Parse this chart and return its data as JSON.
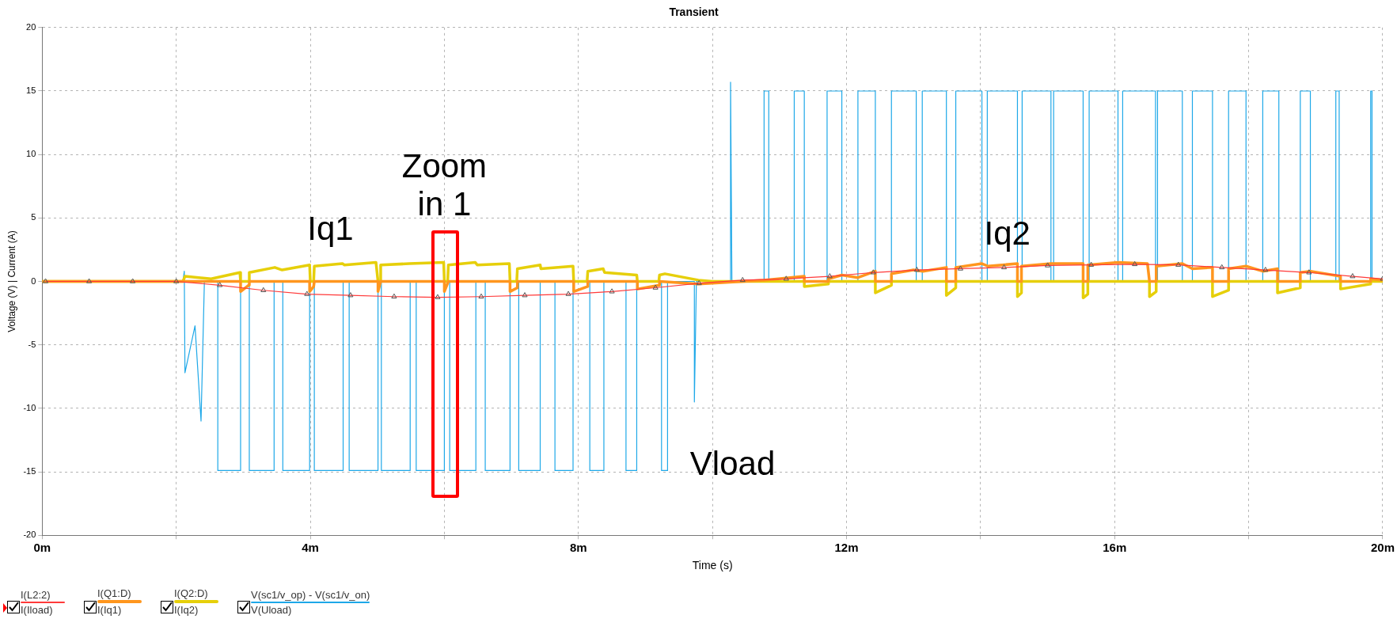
{
  "chart_data": {
    "type": "line",
    "title": "Transient",
    "xlabel": "Time (s)",
    "ylabel": "Voltage (V) | Current (A)",
    "xlim": [
      0,
      20
    ],
    "xticks": [
      {
        "value": 0,
        "label": "0m"
      },
      {
        "value": 2,
        "label": null
      },
      {
        "value": 4,
        "label": "4m"
      },
      {
        "value": 6,
        "label": null
      },
      {
        "value": 8,
        "label": "8m"
      },
      {
        "value": 10,
        "label": null
      },
      {
        "value": 12,
        "label": "12m"
      },
      {
        "value": 14,
        "label": null
      },
      {
        "value": 16,
        "label": "16m"
      },
      {
        "value": 18,
        "label": null
      },
      {
        "value": 20,
        "label": "20m"
      }
    ],
    "ylim": [
      -20,
      20
    ],
    "yticks": [
      -20,
      -15,
      -10,
      -5,
      0,
      5,
      10,
      15,
      20
    ],
    "grid": true,
    "legend": "bottom",
    "line_style": "solid",
    "annotations": [
      "Zoom in 1",
      "Iq1",
      "Iq2",
      "Vload"
    ],
    "series": [
      {
        "name": "I(L2:2)\nI(Iload)",
        "color": "#ff3a3a",
        "marker": "triangle",
        "x": [
          0.05,
          0.7,
          1.35,
          2.0,
          2.65,
          3.3,
          3.95,
          4.6,
          5.25,
          5.9,
          6.55,
          7.2,
          7.85,
          8.5,
          9.15,
          9.8,
          10.45,
          11.1,
          11.75,
          12.4,
          13.05,
          13.7,
          14.35,
          15.0,
          15.65,
          16.3,
          16.95,
          17.6,
          18.25,
          18.9,
          19.55,
          20
        ],
        "values": [
          0,
          0,
          0,
          0,
          -0.3,
          -0.7,
          -1.0,
          -1.1,
          -1.2,
          -1.25,
          -1.2,
          -1.1,
          -1.0,
          -0.8,
          -0.5,
          -0.15,
          0.1,
          0.2,
          0.4,
          0.7,
          0.9,
          1.0,
          1.1,
          1.25,
          1.3,
          1.35,
          1.3,
          1.1,
          0.9,
          0.7,
          0.4,
          0.2
        ]
      },
      {
        "name": "I(Q1:D)\nI(Iq1)",
        "color": "#ff961e",
        "x": [
          0,
          2.96,
          2.96,
          3.08,
          3.09,
          3.99,
          3.99,
          4.05,
          4.06,
          5.01,
          5.01,
          5.05,
          6.0,
          6.0,
          6.06,
          6.98,
          6.98,
          7.09,
          7.09,
          7.93,
          7.93,
          8.14,
          8.14,
          8.88,
          8.88,
          9.21,
          9.21,
          9.79,
          10.77,
          11.37,
          11.37,
          11.73,
          11.73,
          11.93,
          12.17,
          12.43,
          12.43,
          12.67,
          12.67,
          13.0,
          13.14,
          13.49,
          13.49,
          13.63,
          13.63,
          14.02,
          14.11,
          14.55,
          14.55,
          14.61,
          14.61,
          15.05,
          15.53,
          15.53,
          15.6,
          15.6,
          16.05,
          16.49,
          16.52,
          16.62,
          16.62,
          17.01,
          17.16,
          17.46,
          17.46,
          17.7,
          17.7,
          17.96,
          18.21,
          18.43,
          18.43,
          18.77,
          18.77,
          18.92,
          19.37,
          19.37,
          19.82,
          19.82,
          20
        ],
        "values": [
          0,
          0,
          -0.8,
          -0.3,
          0,
          0,
          -0.8,
          -0.4,
          0,
          0,
          -0.8,
          0,
          0,
          -0.8,
          0,
          0,
          -0.8,
          -0.5,
          0,
          0,
          -0.8,
          -0.4,
          0,
          0,
          -0.6,
          -0.3,
          0,
          -0.2,
          0.1,
          0.4,
          0,
          0,
          0.2,
          0.5,
          0.3,
          0.8,
          0,
          0,
          0.6,
          0.9,
          0.8,
          1.1,
          0,
          0,
          1.1,
          1.4,
          1.2,
          1.4,
          0,
          0,
          1.2,
          1.4,
          1.4,
          0,
          0,
          1.3,
          1.5,
          1.4,
          0,
          0,
          1.2,
          1.4,
          1.0,
          1.1,
          0,
          0,
          1.0,
          1.2,
          0.8,
          1.0,
          0,
          0,
          0.7,
          0.8,
          0.4,
          0,
          0,
          0.2,
          0.1
        ]
      },
      {
        "name": "I(Q2:D)\nI(Iq2)",
        "color": "#e6cf0a",
        "x": [
          0,
          2.1,
          2.13,
          2.52,
          2.95,
          2.96,
          3.08,
          3.09,
          3.47,
          3.58,
          3.99,
          4.0,
          4.05,
          4.06,
          4.48,
          4.51,
          4.98,
          5.01,
          5.04,
          5.05,
          5.48,
          5.99,
          6.0,
          6.05,
          6.06,
          6.46,
          6.49,
          6.97,
          6.98,
          7.08,
          7.09,
          7.43,
          7.44,
          7.92,
          7.93,
          8.13,
          8.14,
          8.37,
          8.39,
          8.87,
          8.88,
          9.2,
          9.21,
          9.29,
          9.79,
          10,
          11.37,
          11.37,
          11.73,
          11.73,
          12.43,
          12.43,
          12.67,
          12.67,
          13.49,
          13.49,
          13.63,
          13.63,
          14.55,
          14.55,
          14.61,
          14.61,
          15.53,
          15.53,
          15.6,
          15.6,
          16.52,
          16.52,
          16.62,
          16.62,
          17.46,
          17.46,
          17.7,
          17.7,
          18.43,
          18.43,
          18.77,
          18.77,
          19.37,
          19.37,
          19.82,
          19.82,
          20
        ],
        "values": [
          0,
          0,
          0.4,
          0.2,
          0.7,
          0,
          0,
          0.7,
          1.1,
          0.9,
          1.3,
          0,
          0,
          1.2,
          1.4,
          1.3,
          1.5,
          0,
          0,
          1.3,
          1.4,
          1.5,
          0,
          0,
          1.3,
          1.5,
          1.3,
          1.4,
          0,
          0,
          1.0,
          1.3,
          1.0,
          1.2,
          0,
          0,
          0.8,
          1.0,
          0.7,
          0.5,
          0,
          0,
          0.5,
          0.6,
          0.1,
          0,
          0,
          -0.4,
          -0.2,
          0,
          0,
          -0.9,
          -0.3,
          0,
          0,
          -1.1,
          -0.5,
          0,
          0,
          -1.2,
          -0.9,
          0,
          0,
          -1.3,
          -1.0,
          0,
          0,
          -1.2,
          -0.8,
          0,
          0,
          -1.2,
          -0.7,
          0,
          0,
          -0.9,
          -0.5,
          0,
          0,
          -0.6,
          -0.2,
          0,
          0
        ]
      },
      {
        "name": "V(sc1/v_op) - V(sc1/v_on)\nV(Uload)",
        "color": "#1ea8e8",
        "x": [
          0,
          2.1,
          2.12,
          2.13,
          2.28,
          2.37,
          2.42,
          2.62,
          2.62,
          2.96,
          2.96,
          3.09,
          3.09,
          3.46,
          3.46,
          3.59,
          3.59,
          3.99,
          3.99,
          4.06,
          4.06,
          4.49,
          4.49,
          4.58,
          4.58,
          5.01,
          5.01,
          5.06,
          5.06,
          5.49,
          5.49,
          5.58,
          5.58,
          6.0,
          6.0,
          6.08,
          6.08,
          6.47,
          6.47,
          6.61,
          6.61,
          6.98,
          6.98,
          7.11,
          7.11,
          7.43,
          7.43,
          7.65,
          7.65,
          7.92,
          7.92,
          8.17,
          8.17,
          8.38,
          8.38,
          8.71,
          8.71,
          8.87,
          8.87,
          9.24,
          9.24,
          9.33,
          9.33,
          9.73,
          9.73,
          9.76,
          10.27,
          10.27,
          10.29,
          10.77,
          10.77,
          10.84,
          10.84,
          11.22,
          11.22,
          11.37,
          11.37,
          11.71,
          11.71,
          11.93,
          11.93,
          12.17,
          12.17,
          12.43,
          12.43,
          12.67,
          12.67,
          13.04,
          13.04,
          13.13,
          13.13,
          13.49,
          13.49,
          13.63,
          13.63,
          14.02,
          14.02,
          14.1,
          14.1,
          14.55,
          14.55,
          14.62,
          14.62,
          15.05,
          15.05,
          15.09,
          15.09,
          15.53,
          15.53,
          15.62,
          15.62,
          16.05,
          16.05,
          16.12,
          16.12,
          16.61,
          16.61,
          16.64,
          16.64,
          17.01,
          17.01,
          17.16,
          17.16,
          17.46,
          17.46,
          17.7,
          17.7,
          17.96,
          17.96,
          18.21,
          18.21,
          18.45,
          18.45,
          18.77,
          18.77,
          18.92,
          18.92,
          19.3,
          19.3,
          19.35,
          19.35,
          19.82,
          19.82,
          19.84,
          19.84,
          20
        ],
        "values": [
          0,
          0,
          0.8,
          -7.2,
          -3.5,
          -11,
          0,
          0,
          -14.9,
          -14.9,
          0,
          0,
          -14.9,
          -14.9,
          0,
          0,
          -14.9,
          -14.9,
          0,
          0,
          -14.9,
          -14.9,
          0,
          0,
          -14.9,
          -14.9,
          0,
          0,
          -14.9,
          -14.9,
          0,
          0,
          -14.9,
          -14.9,
          0,
          0,
          -14.9,
          -14.9,
          0,
          0,
          -14.9,
          -14.9,
          0,
          0,
          -14.9,
          -14.9,
          0,
          0,
          -14.9,
          -14.9,
          0,
          0,
          -14.9,
          -14.9,
          0,
          0,
          -14.9,
          -14.9,
          0,
          0,
          -14.9,
          -14.9,
          0,
          0,
          -9.5,
          0,
          0,
          15.7,
          0,
          0,
          15,
          15,
          0,
          0,
          15,
          15,
          0,
          0,
          15,
          15,
          0,
          0,
          15,
          15,
          0,
          0,
          15,
          15,
          0,
          0,
          15,
          15,
          0,
          0,
          15,
          15,
          0,
          0,
          15,
          15,
          0,
          0,
          15,
          15,
          0,
          0,
          15,
          15,
          0,
          0,
          15,
          15,
          0,
          0,
          15,
          15,
          0,
          0,
          15,
          15,
          0,
          0,
          15,
          15,
          0,
          0,
          15,
          15,
          0,
          0,
          15,
          15,
          0,
          0,
          15,
          15,
          0,
          0,
          15,
          15,
          0,
          0,
          15,
          15,
          0,
          0
        ]
      }
    ]
  }
}
